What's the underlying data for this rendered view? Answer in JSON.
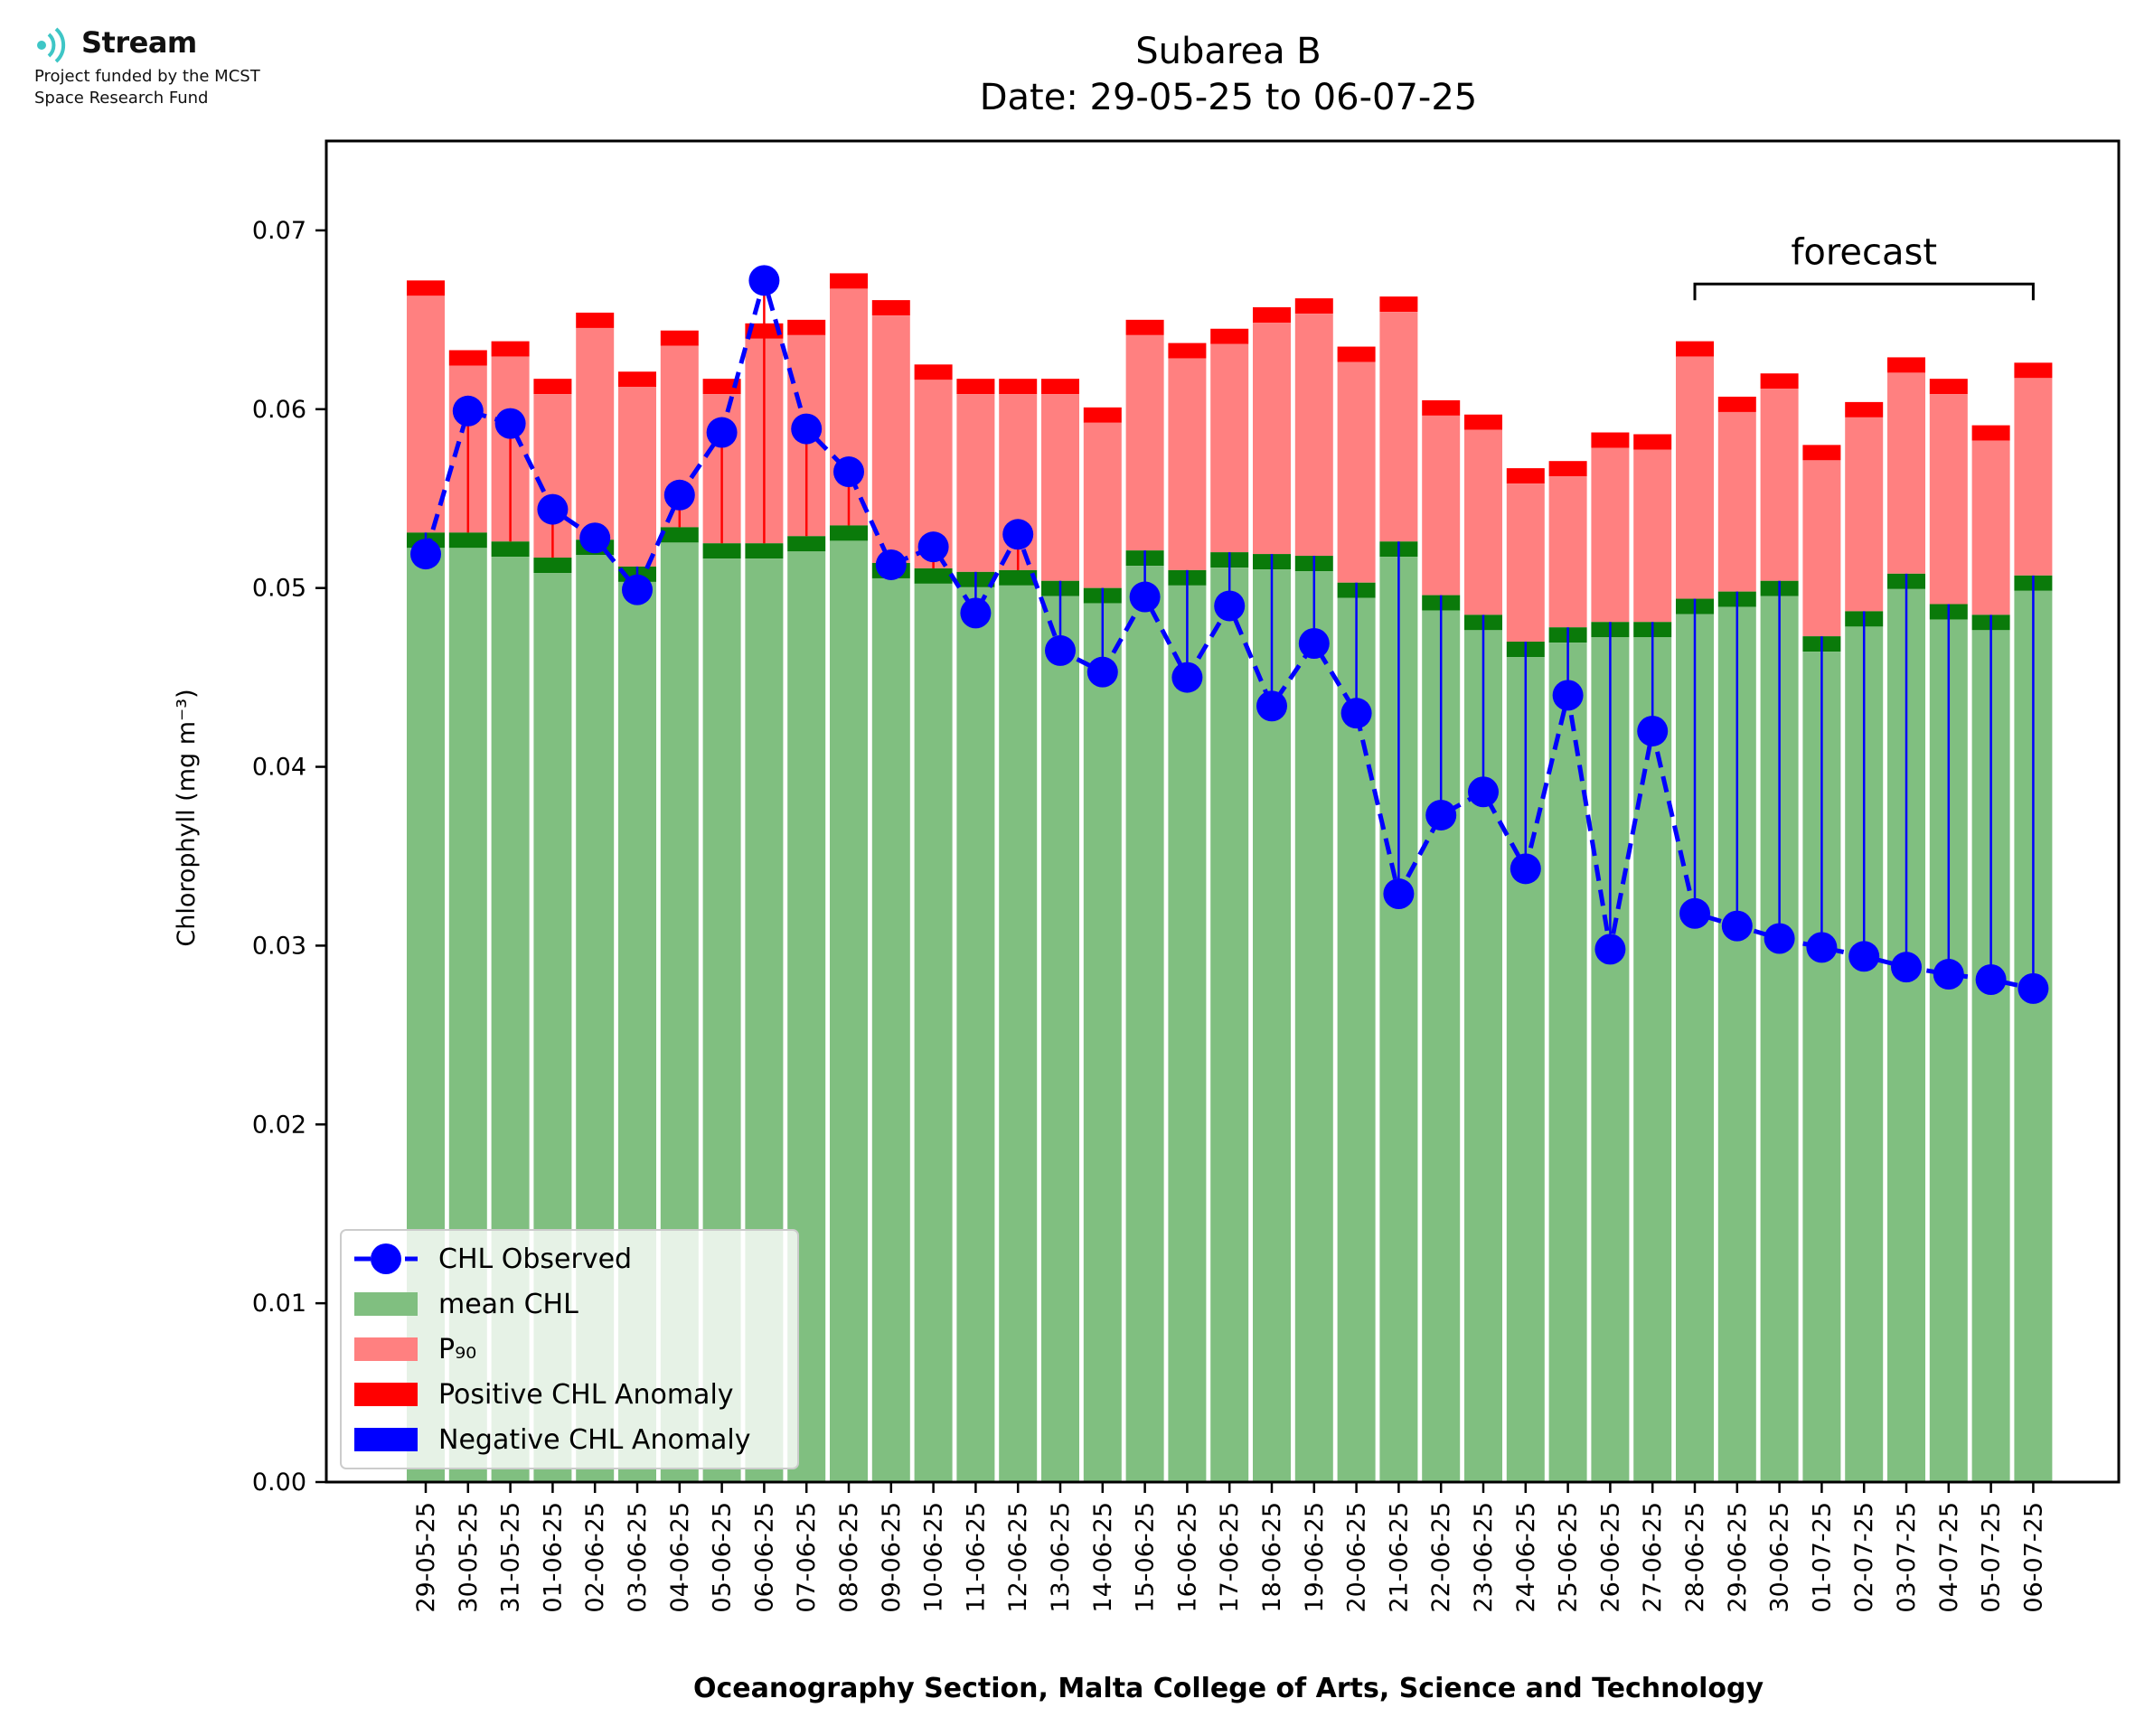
{
  "logo": {
    "name": "Stream",
    "line1": "Project funded by the MCST",
    "line2": "Space Research Fund",
    "accent": "#3ec6c6"
  },
  "colors": {
    "mean": "#80bf80",
    "mean_edge": "#0a7a0a",
    "p90": "#ff8080",
    "positive_anomaly": "#ff0000",
    "negative_anomaly": "#0000ff",
    "observed": "#0000ff"
  },
  "chart_data": {
    "type": "bar",
    "title": "Subarea B",
    "subtitle": "Date: 29-05-25 to 06-07-25",
    "xlabel": "Oceanography Section, Malta College of Arts, Science and Technology",
    "ylabel": "Chlorophyll (mg m⁻³)",
    "ylim": [
      0,
      0.075
    ],
    "yticks": [
      "0.00",
      "0.01",
      "0.02",
      "0.03",
      "0.04",
      "0.05",
      "0.06",
      "0.07"
    ],
    "categories": [
      "29-05-25",
      "30-05-25",
      "31-05-25",
      "01-06-25",
      "02-06-25",
      "03-06-25",
      "04-06-25",
      "05-06-25",
      "06-06-25",
      "07-06-25",
      "08-06-25",
      "09-06-25",
      "10-06-25",
      "11-06-25",
      "12-06-25",
      "13-06-25",
      "14-06-25",
      "15-06-25",
      "16-06-25",
      "17-06-25",
      "18-06-25",
      "19-06-25",
      "20-06-25",
      "21-06-25",
      "22-06-25",
      "23-06-25",
      "24-06-25",
      "25-06-25",
      "26-06-25",
      "27-06-25",
      "28-06-25",
      "29-06-25",
      "30-06-25",
      "01-07-25",
      "02-07-25",
      "03-07-25",
      "04-07-25",
      "05-07-25",
      "06-07-25"
    ],
    "series": [
      {
        "name": "mean CHL",
        "values": [
          0.0531,
          0.0531,
          0.0526,
          0.0517,
          0.0527,
          0.0512,
          0.0534,
          0.0525,
          0.0525,
          0.0529,
          0.0535,
          0.0514,
          0.0511,
          0.0509,
          0.051,
          0.0504,
          0.05,
          0.0521,
          0.051,
          0.052,
          0.0519,
          0.0518,
          0.0503,
          0.0526,
          0.0496,
          0.0485,
          0.047,
          0.0478,
          0.0481,
          0.0481,
          0.0494,
          0.0498,
          0.0504,
          0.0473,
          0.0487,
          0.0508,
          0.0491,
          0.0485,
          0.0507
        ]
      },
      {
        "name": "P₉₀",
        "values": [
          0.0672,
          0.0633,
          0.0638,
          0.0617,
          0.0654,
          0.0621,
          0.0644,
          0.0617,
          0.0648,
          0.065,
          0.0676,
          0.0661,
          0.0625,
          0.0617,
          0.0617,
          0.0617,
          0.0601,
          0.065,
          0.0637,
          0.0645,
          0.0657,
          0.0662,
          0.0635,
          0.0663,
          0.0605,
          0.0597,
          0.0567,
          0.0571,
          0.0587,
          0.0586,
          0.0638,
          0.0607,
          0.062,
          0.058,
          0.0604,
          0.0629,
          0.0617,
          0.0591,
          0.0626
        ]
      },
      {
        "name": "CHL Observed",
        "values": [
          0.0519,
          0.0599,
          0.0592,
          0.0544,
          0.0528,
          0.0499,
          0.0552,
          0.0587,
          0.0672,
          0.0589,
          0.0565,
          0.0513,
          0.0523,
          0.0486,
          0.053,
          0.0465,
          0.0453,
          0.0495,
          0.045,
          0.049,
          0.0434,
          0.0469,
          0.043,
          0.0329,
          0.0373,
          0.0386,
          0.0343,
          0.044,
          0.0298,
          0.042,
          0.0318,
          0.0311,
          0.0304,
          0.0299,
          0.0294,
          0.0288,
          0.0284,
          0.0281,
          0.0276
        ]
      }
    ],
    "legend": [
      "CHL Observed",
      "mean CHL",
      "P₉₀",
      "Positive CHL Anomaly",
      "Negative CHL Anomaly"
    ],
    "legend_position": "lower-left",
    "annotation": {
      "text": "forecast",
      "from": "28-06-25",
      "to": "06-07-25"
    }
  }
}
